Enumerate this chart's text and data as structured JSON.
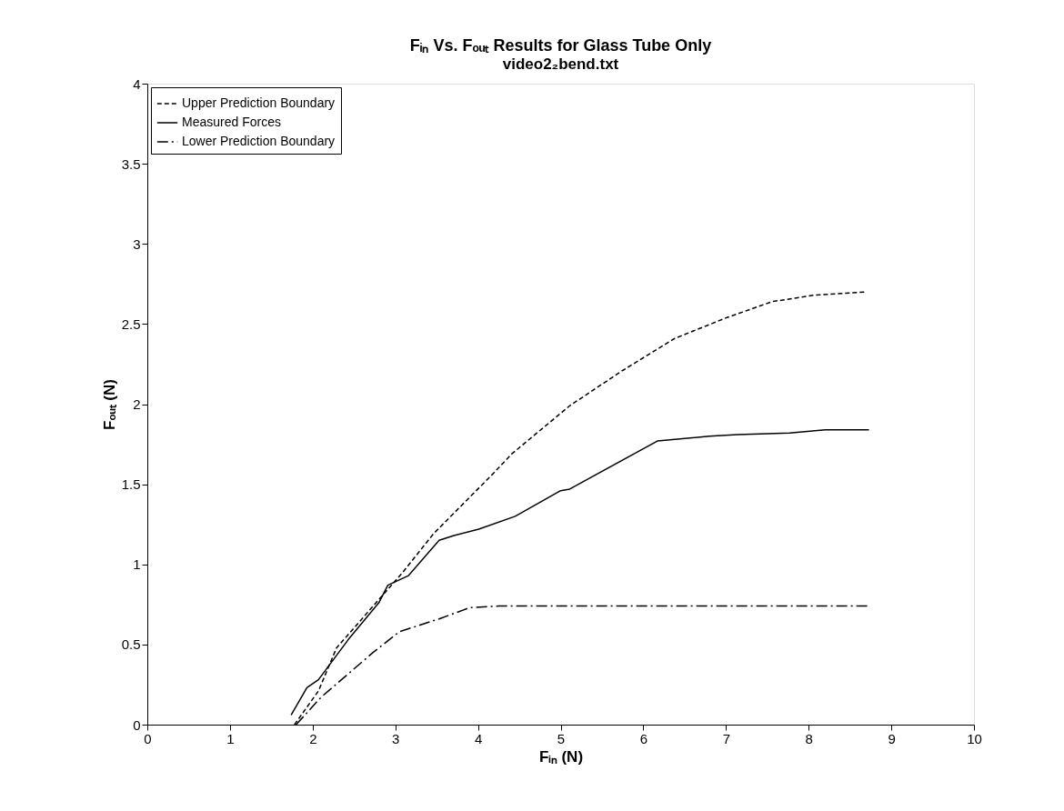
{
  "chart_data": {
    "type": "line",
    "title": "Fᵢₙ Vs. Fₒᵤₜ Results for Glass Tube Only",
    "subtitle": "video2₂bend.txt",
    "xlabel": "Fᵢₙ (N)",
    "ylabel": "Fₒᵤₜ (N)",
    "xlim": [
      0,
      10
    ],
    "xticks": [
      0,
      1,
      2,
      3,
      4,
      5,
      6,
      7,
      8,
      9,
      10
    ],
    "ylim": [
      0,
      4
    ],
    "yticks": [
      0,
      0.5,
      1,
      1.5,
      2,
      2.5,
      3,
      3.5,
      4
    ],
    "grid": false,
    "legend": "top left",
    "marker": "none",
    "series": [
      {
        "name": "Upper Prediction Boundary",
        "color": "#000000",
        "line_style": "dashed",
        "x": [
          1.78,
          2.07,
          2.29,
          3.09,
          3.46,
          4.19,
          4.41,
          5.11,
          5.75,
          6.38,
          7.01,
          7.56,
          8.07,
          8.7
        ],
        "values": [
          0.0,
          0.21,
          0.48,
          0.95,
          1.19,
          1.57,
          1.69,
          1.99,
          2.21,
          2.41,
          2.54,
          2.64,
          2.68,
          2.7
        ]
      },
      {
        "name": "Measured Forces",
        "color": "#000000",
        "line_style": "solid",
        "x": [
          1.74,
          1.93,
          2.07,
          2.43,
          2.8,
          2.91,
          3.16,
          3.53,
          3.71,
          4.01,
          4.45,
          5.0,
          5.11,
          6.17,
          6.8,
          7.14,
          7.77,
          8.2,
          8.73
        ],
        "values": [
          0.06,
          0.23,
          0.28,
          0.53,
          0.76,
          0.87,
          0.93,
          1.15,
          1.18,
          1.22,
          1.3,
          1.46,
          1.47,
          1.77,
          1.8,
          1.81,
          1.82,
          1.84,
          1.84
        ]
      },
      {
        "name": "Lower Prediction Boundary",
        "color": "#000000",
        "line_style": "dashdot",
        "x": [
          1.8,
          2.1,
          2.73,
          3.05,
          3.53,
          3.9,
          4.26,
          8.73
        ],
        "values": [
          0.0,
          0.17,
          0.45,
          0.58,
          0.66,
          0.73,
          0.74,
          0.74
        ]
      }
    ]
  }
}
